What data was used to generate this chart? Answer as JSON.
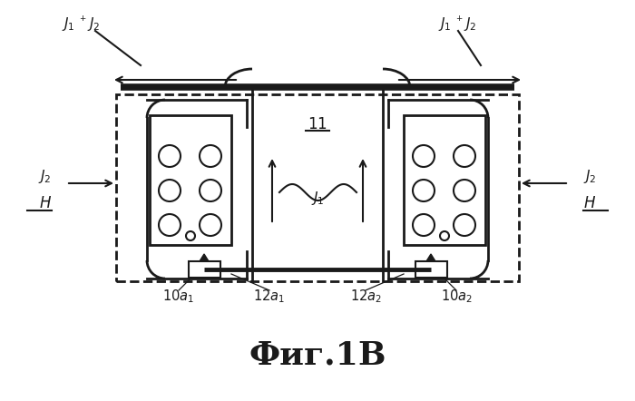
{
  "bg_color": "#ffffff",
  "line_color": "#1a1a1a",
  "title": "Фиг.1B",
  "title_fontsize": 26,
  "fig_width": 7.0,
  "fig_height": 4.42,
  "dpi": 100
}
